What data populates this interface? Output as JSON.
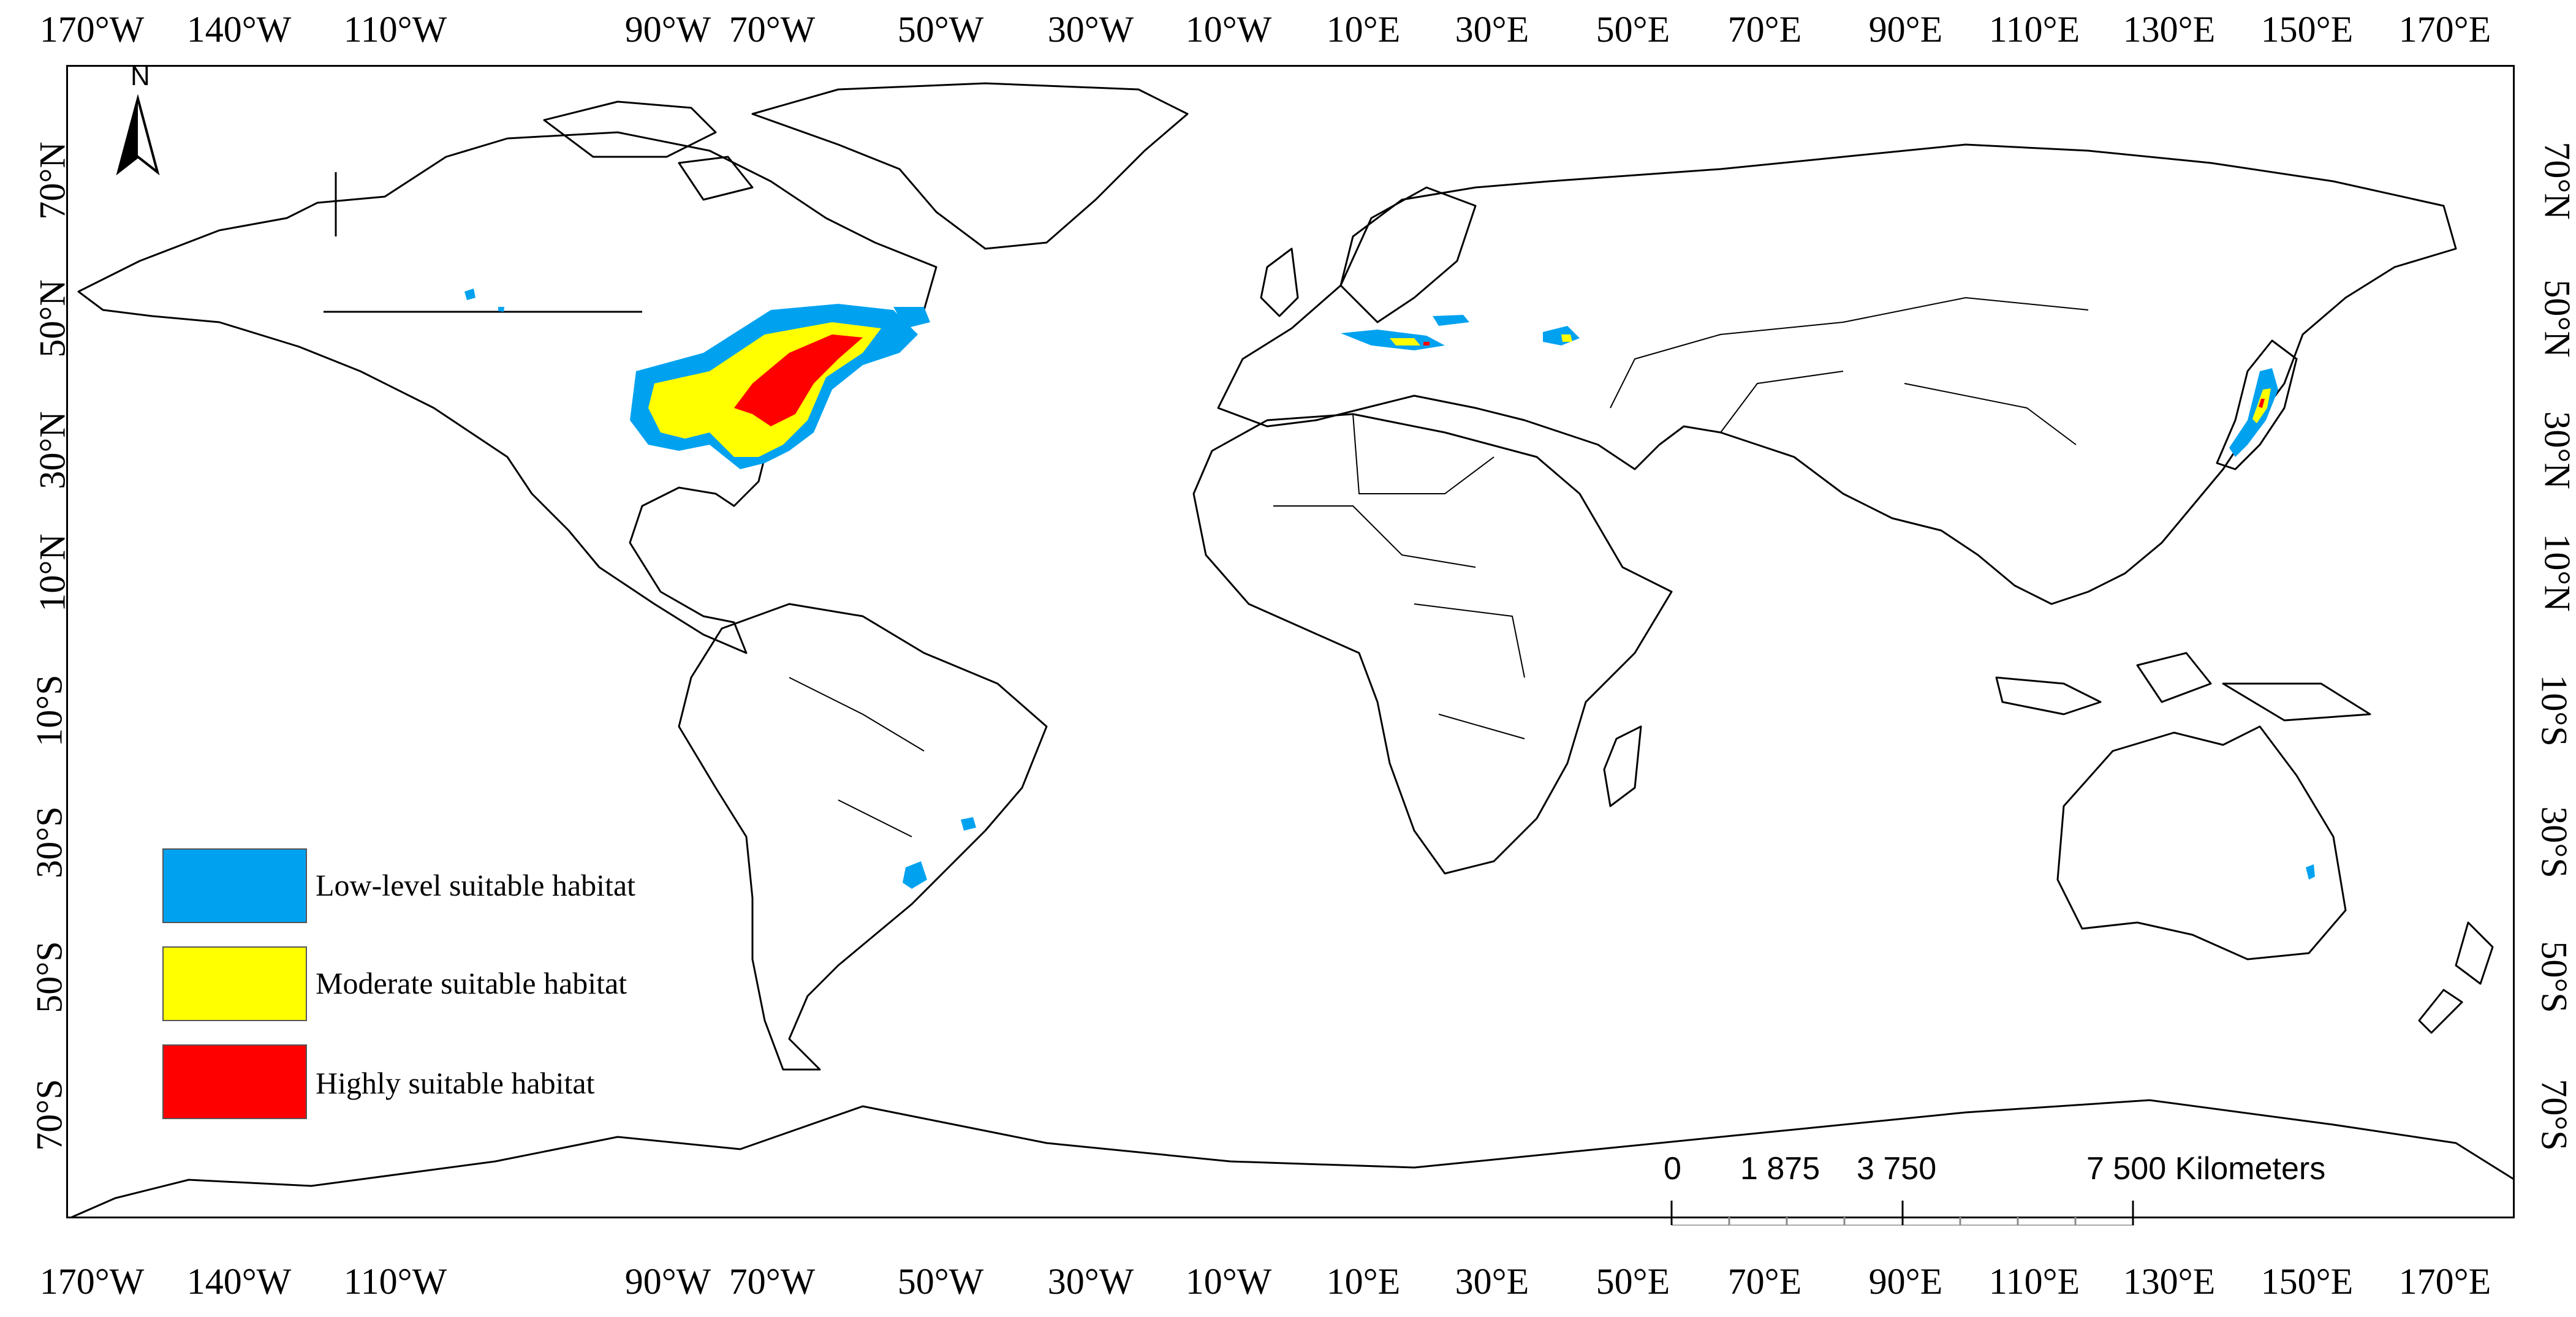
{
  "map": {
    "lon_labels": [
      "170°W",
      "140°W",
      "110°W",
      "90°W",
      "70°W",
      "50°W",
      "30°W",
      "10°W",
      "10°E",
      "30°E",
      "50°E",
      "70°E",
      "90°E",
      "110°E",
      "130°E",
      "150°E",
      "170°E"
    ],
    "lat_labels_left": [
      "70°N",
      "50°N",
      "30°N",
      "10°N",
      "10°S",
      "30°S",
      "50°S",
      "70°S"
    ],
    "lat_labels_right": [
      "70°N",
      "50°N",
      "30°N",
      "10°N",
      "10°S",
      "30°S",
      "50°S",
      "70°S"
    ],
    "north_arrow": "N",
    "legend": [
      {
        "label": "Low-level suitable habitat",
        "color": "#00a2f0"
      },
      {
        "label": "Moderate suitable habitat",
        "color": "#ffff00"
      },
      {
        "label": "Highly suitable habitat",
        "color": "#ff0000"
      }
    ],
    "scale_bar": {
      "labels": [
        "0",
        "1 875",
        "3 750",
        "7 500 Kilometers"
      ]
    }
  }
}
